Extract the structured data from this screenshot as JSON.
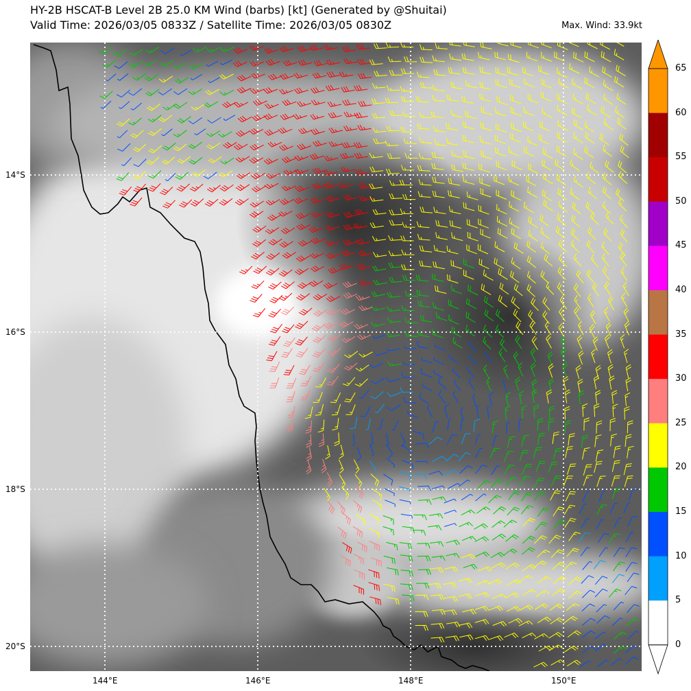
{
  "header": {
    "title_line1": "HY-2B HSCAT-B Level 2B 25.0 KM Wind (barbs) [kt] (Generated by @Shuitai)",
    "title_line2": "Valid Time: 2026/03/05 0833Z / Satellite Time: 2026/03/05 0830Z",
    "max_wind": "Max. Wind: 33.9kt"
  },
  "map": {
    "lon_labels": [
      "144°E",
      "146°E",
      "148°E",
      "150°E"
    ],
    "lat_labels": [
      "14°S",
      "16°S",
      "18°S",
      "20°S"
    ],
    "gridline_color": "#ffffff"
  },
  "colorbar": {
    "labels": [
      "0",
      "5",
      "10",
      "15",
      "20",
      "25",
      "30",
      "35",
      "40",
      "45",
      "50",
      "55",
      "60",
      "65"
    ],
    "colors": [
      "#ffffff",
      "#00a0ff",
      "#0050ff",
      "#00c800",
      "#ffff00",
      "#ff7f7f",
      "#ff0000",
      "#b97644",
      "#ff00ff",
      "#a000c8",
      "#c80000",
      "#a00000",
      "#ff9600"
    ]
  }
}
